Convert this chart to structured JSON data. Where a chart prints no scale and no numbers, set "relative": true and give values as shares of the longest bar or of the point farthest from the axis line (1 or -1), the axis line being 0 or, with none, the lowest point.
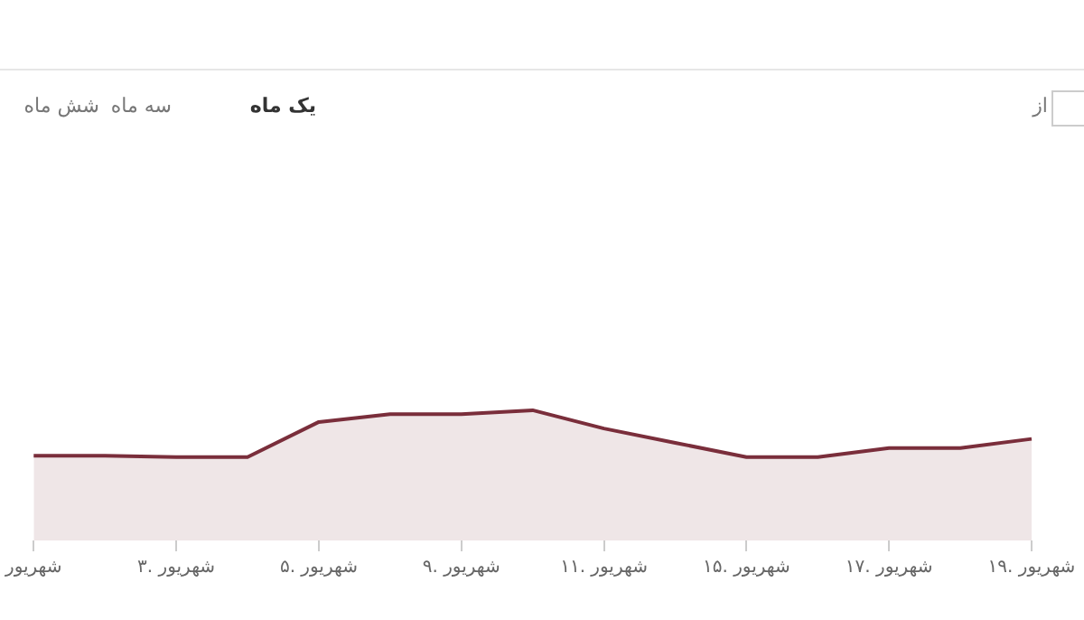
{
  "chart_data": {
    "type": "area",
    "relative": true,
    "categories": [
      "شهریور",
      null,
      "۳. شهریور",
      null,
      "۵. شهریور",
      null,
      "۹. شهریور",
      null,
      "۱۱. شهریور",
      null,
      "۱۵. شهریور",
      null,
      "۱۷. شهریور",
      null,
      "۱۹. شهریور"
    ],
    "series": [
      {
        "color": "#7a2e3b",
        "values": [
          0.65,
          0.65,
          0.64,
          0.64,
          0.91,
          0.97,
          0.97,
          1,
          0.86,
          0.75,
          0.64,
          0.64,
          0.71,
          0.71,
          0.78
        ]
      }
    ],
    "annotations": [
      "یک ماه",
      "سه ماه",
      "شش ماه",
      "از"
    ],
    "legend": false,
    "marker": "none",
    "line_style": "solid"
  }
}
